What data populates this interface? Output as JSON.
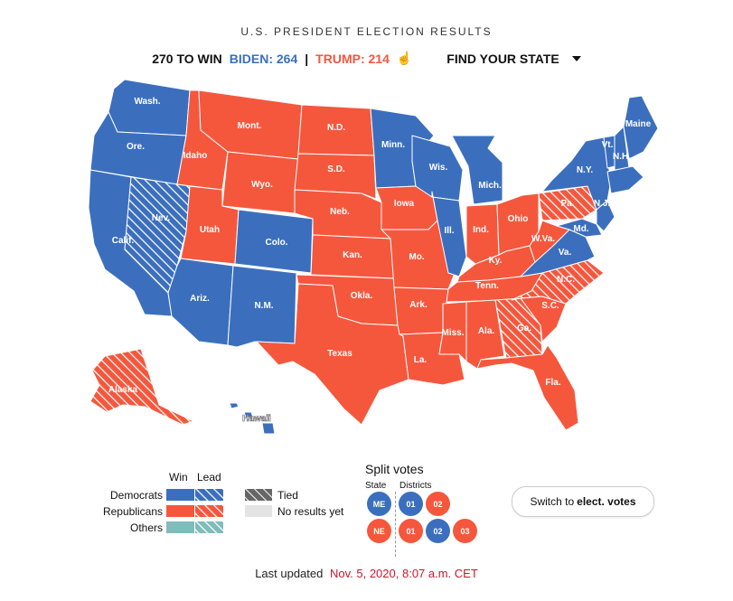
{
  "header": {
    "title": "U.S. PRESIDENT ELECTION RESULTS",
    "to_win": "270 TO WIN",
    "biden": "BIDEN: 264",
    "separator": "|",
    "trump": "TRUMP: 214",
    "hand_icon": "pointer-hand-icon",
    "find_state": "FIND YOUR STATE"
  },
  "colors": {
    "dem": "#3b6fbe",
    "rep": "#f5573d",
    "other": "#7fbcbb",
    "tied": "#666666",
    "no_results": "#e4e4e4",
    "date": "#c7182e"
  },
  "states": [
    {
      "abbr": "Wash.",
      "result": "dem_win"
    },
    {
      "abbr": "Ore.",
      "result": "dem_win"
    },
    {
      "abbr": "Calif.",
      "result": "dem_win"
    },
    {
      "abbr": "Nev.",
      "result": "dem_lead"
    },
    {
      "abbr": "Idaho",
      "result": "rep_win"
    },
    {
      "abbr": "Mont.",
      "result": "rep_win"
    },
    {
      "abbr": "Wyo.",
      "result": "rep_win"
    },
    {
      "abbr": "Utah",
      "result": "rep_win"
    },
    {
      "abbr": "Colo.",
      "result": "dem_win"
    },
    {
      "abbr": "Ariz.",
      "result": "dem_win"
    },
    {
      "abbr": "N.M.",
      "result": "dem_win"
    },
    {
      "abbr": "N.D.",
      "result": "rep_win"
    },
    {
      "abbr": "S.D.",
      "result": "rep_win"
    },
    {
      "abbr": "Neb.",
      "result": "rep_win"
    },
    {
      "abbr": "Kan.",
      "result": "rep_win"
    },
    {
      "abbr": "Okla.",
      "result": "rep_win"
    },
    {
      "abbr": "Texas",
      "result": "rep_win"
    },
    {
      "abbr": "Minn.",
      "result": "dem_win"
    },
    {
      "abbr": "Iowa",
      "result": "rep_win"
    },
    {
      "abbr": "Mo.",
      "result": "rep_win"
    },
    {
      "abbr": "Ark.",
      "result": "rep_win"
    },
    {
      "abbr": "La.",
      "result": "rep_win"
    },
    {
      "abbr": "Wis.",
      "result": "dem_win"
    },
    {
      "abbr": "Ill.",
      "result": "dem_win"
    },
    {
      "abbr": "Mich.",
      "result": "dem_win"
    },
    {
      "abbr": "Ind.",
      "result": "rep_win"
    },
    {
      "abbr": "Ohio",
      "result": "rep_win"
    },
    {
      "abbr": "Ky.",
      "result": "rep_win"
    },
    {
      "abbr": "Tenn.",
      "result": "rep_win"
    },
    {
      "abbr": "Miss.",
      "result": "rep_win"
    },
    {
      "abbr": "Ala.",
      "result": "rep_win"
    },
    {
      "abbr": "Ga.",
      "result": "rep_lead"
    },
    {
      "abbr": "Fla.",
      "result": "rep_win"
    },
    {
      "abbr": "S.C.",
      "result": "rep_win"
    },
    {
      "abbr": "N.C.",
      "result": "rep_lead"
    },
    {
      "abbr": "Va.",
      "result": "dem_win"
    },
    {
      "abbr": "W.Va.",
      "result": "rep_win"
    },
    {
      "abbr": "Pa.",
      "result": "rep_lead"
    },
    {
      "abbr": "N.Y.",
      "result": "dem_win"
    },
    {
      "abbr": "Md.",
      "result": "dem_win"
    },
    {
      "abbr": "N.J.",
      "result": "dem_win"
    },
    {
      "abbr": "Vt.",
      "result": "dem_win"
    },
    {
      "abbr": "N.H.",
      "result": "dem_win"
    },
    {
      "abbr": "Maine",
      "result": "dem_win"
    },
    {
      "abbr": "Alaska",
      "result": "rep_lead"
    },
    {
      "abbr": "Hawaii",
      "result": "dem_win"
    }
  ],
  "legend": {
    "win": "Win",
    "lead": "Lead",
    "democrats": "Democrats",
    "republicans": "Republicans",
    "others": "Others",
    "tied": "Tied",
    "no_results": "No results yet"
  },
  "split_votes": {
    "title": "Split votes",
    "state_label": "State",
    "districts_label": "Districts",
    "me": {
      "state": "ME",
      "districts": [
        {
          "n": "01",
          "party": "dem"
        },
        {
          "n": "02",
          "party": "rep"
        }
      ]
    },
    "ne": {
      "state": "NE",
      "districts": [
        {
          "n": "01",
          "party": "rep"
        },
        {
          "n": "02",
          "party": "dem"
        },
        {
          "n": "03",
          "party": "rep"
        }
      ]
    }
  },
  "switch_button": {
    "prefix": "Switch to",
    "bold": "elect. votes"
  },
  "updated": {
    "label": "Last updated",
    "timestamp": "Nov. 5, 2020, 8:07 a.m. CET"
  }
}
